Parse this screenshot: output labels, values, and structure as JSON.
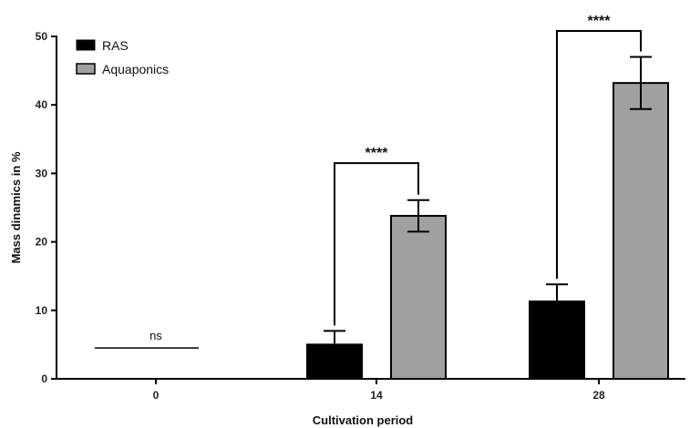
{
  "chart_data": {
    "type": "bar",
    "xlabel": "Cultivation period",
    "ylabel": "Mass dinamics in %",
    "categories": [
      "0",
      "14",
      "28"
    ],
    "ylim": [
      0,
      50
    ],
    "yticks": [
      "0",
      "10",
      "20",
      "30",
      "40",
      "50"
    ],
    "grid": false,
    "legend_position": "top-left",
    "series": [
      {
        "name": "RAS",
        "color": "#000000",
        "values": [
          0,
          5.0,
          11.3
        ],
        "errors": [
          0,
          2.0,
          2.5
        ]
      },
      {
        "name": "Aquaponics",
        "color": "#a0a0a0",
        "values": [
          0,
          23.8,
          43.2
        ],
        "errors": [
          0,
          2.3,
          3.8
        ]
      }
    ],
    "annotations": [
      {
        "category_index": 0,
        "label": "ns",
        "y": 4.5
      },
      {
        "category_index": 1,
        "label": "****",
        "y": 31.5
      },
      {
        "category_index": 2,
        "label": "****",
        "y": 50.8
      }
    ]
  }
}
